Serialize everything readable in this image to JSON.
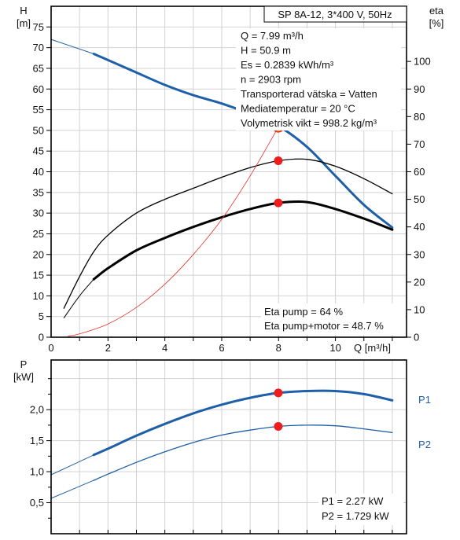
{
  "chart_data": [
    {
      "type": "line",
      "title": "SP 8A-12, 3*400 V, 50Hz",
      "left_axis": {
        "label": "H",
        "unit": "[m]",
        "ylim": [
          0,
          80
        ],
        "ticks": [
          0,
          5,
          10,
          15,
          20,
          25,
          30,
          35,
          40,
          45,
          50,
          55,
          60,
          65,
          70,
          75
        ]
      },
      "right_axis": {
        "label": "eta",
        "unit": "[%]",
        "ylim": [
          0,
          120
        ],
        "ticks": [
          0,
          10,
          20,
          30,
          40,
          50,
          60,
          70,
          80,
          90,
          100
        ]
      },
      "x_axis": {
        "label": "Q [m³/h]",
        "xlim": [
          0,
          12.5
        ],
        "ticks": [
          0,
          2,
          4,
          6,
          8,
          10
        ]
      },
      "grid": true,
      "series": [
        {
          "axis": "left",
          "color": "#1f5fa8",
          "width": 3,
          "x": [
            1.5,
            2,
            3,
            4,
            5,
            6,
            7,
            8,
            9,
            10,
            11,
            12
          ],
          "values": [
            68.5,
            67,
            64,
            61,
            58.5,
            56.5,
            54,
            51,
            46,
            39,
            32,
            26.5
          ]
        },
        {
          "axis": "left",
          "color": "#1f5fa8",
          "width": 1,
          "x": [
            0,
            1.5
          ],
          "values": [
            72,
            68.5
          ]
        },
        {
          "axis": "right",
          "color": "#000000",
          "width": 1.3,
          "x": [
            0.45,
            1,
            1.5,
            2,
            3,
            4,
            5,
            6,
            7,
            8,
            9,
            10,
            11,
            12
          ],
          "values": [
            10.5,
            22,
            31,
            37,
            45,
            50,
            54,
            58,
            61.5,
            64,
            64.5,
            62,
            57.5,
            52
          ]
        },
        {
          "axis": "right",
          "color": "#000000",
          "width": 3,
          "x": [
            1.5,
            2,
            3,
            4,
            5,
            6,
            7,
            8,
            9,
            10,
            11,
            12
          ],
          "values": [
            21,
            25,
            31.5,
            36,
            40,
            43.5,
            46.5,
            48.7,
            49,
            46.5,
            43,
            39
          ]
        },
        {
          "axis": "right",
          "color": "#000000",
          "width": 1,
          "x": [
            0.45,
            1,
            1.5
          ],
          "values": [
            7,
            15,
            21
          ]
        },
        {
          "axis": "left",
          "color": "#e8322a",
          "width": 0.8,
          "x": [
            0.6,
            1,
            2,
            3,
            4,
            5,
            6,
            7,
            8
          ],
          "values": [
            0.3,
            0.8,
            3.2,
            7.2,
            12.8,
            20,
            28.5,
            39,
            50.9
          ]
        }
      ],
      "points": [
        {
          "x": 7.99,
          "y": 50.9,
          "axis": "left",
          "style": "yellow"
        },
        {
          "x": 7.99,
          "y": 64,
          "axis": "right",
          "style": "red"
        },
        {
          "x": 7.99,
          "y": 48.7,
          "axis": "right",
          "style": "red"
        }
      ],
      "info_lines": [
        "Q = 7.99 m³/h",
        "H = 50.9 m",
        "Es = 0.2839 kWh/m³",
        "n = 2903 rpm",
        "Transporterad vätska = Vatten",
        "Mediatemperatur = 20 °C",
        "Volymetrisk vikt = 998.2 kg/m³"
      ],
      "eta_lines": [
        "Eta pump = 64 %",
        "Eta pump+motor = 48.7 %"
      ]
    },
    {
      "type": "line",
      "left_axis": {
        "label": "P",
        "unit": "[kW]",
        "ylim": [
          0,
          2.8
        ],
        "ticks": [
          "0,5",
          "1,0",
          "1,5",
          "2,0"
        ],
        "tick_values": [
          0.5,
          1.0,
          1.5,
          2.0
        ]
      },
      "x_axis": {
        "xlim": [
          0,
          12.5
        ]
      },
      "grid": true,
      "series": [
        {
          "name": "P1",
          "color": "#1f5fa8",
          "width": 3,
          "x": [
            1.5,
            2,
            3,
            4,
            5,
            6,
            7,
            8,
            9,
            10,
            11,
            12
          ],
          "values": [
            1.27,
            1.37,
            1.58,
            1.77,
            1.94,
            2.08,
            2.19,
            2.27,
            2.3,
            2.3,
            2.25,
            2.15
          ]
        },
        {
          "name": "P1",
          "color": "#1f5fa8",
          "width": 1,
          "x": [
            0,
            1.5
          ],
          "values": [
            0.95,
            1.27
          ]
        },
        {
          "name": "P2",
          "color": "#1f5fa8",
          "width": 1.3,
          "x": [
            1.5,
            2,
            3,
            4,
            5,
            6,
            7,
            8,
            9,
            10,
            11,
            12
          ],
          "values": [
            0.86,
            0.96,
            1.15,
            1.32,
            1.47,
            1.59,
            1.67,
            1.73,
            1.75,
            1.74,
            1.69,
            1.63
          ]
        },
        {
          "name": "P2",
          "color": "#1f5fa8",
          "width": 1,
          "x": [
            0,
            1.5
          ],
          "values": [
            0.57,
            0.86
          ]
        }
      ],
      "points": [
        {
          "x": 7.99,
          "y": 2.27,
          "style": "red"
        },
        {
          "x": 7.99,
          "y": 1.729,
          "style": "red"
        }
      ],
      "legend": [
        "P1",
        "P2"
      ],
      "value_lines": [
        "P1 = 2.27 kW",
        "P2 = 1.729 kW"
      ]
    }
  ]
}
